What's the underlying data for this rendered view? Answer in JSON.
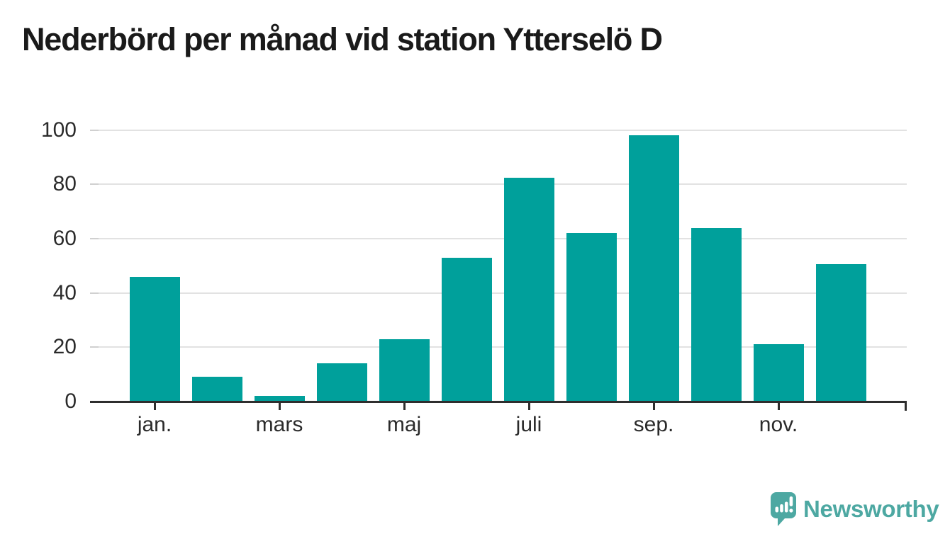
{
  "title": "Nederbörd per månad vid station Ytterselö D",
  "chart_data": {
    "type": "bar",
    "title": "Nederbörd per månad vid station Ytterselö D",
    "values": [
      46,
      9,
      2,
      14,
      23,
      53,
      82.5,
      62,
      98,
      64,
      21,
      50.5
    ],
    "x_tick_labels": [
      "jan.",
      "mars",
      "maj",
      "juli",
      "sep.",
      "nov."
    ],
    "x_tick_bar_indexes": [
      0,
      2,
      4,
      6,
      8,
      10
    ],
    "y_tick_labels": [
      "0",
      "20",
      "40",
      "60",
      "80",
      "100"
    ],
    "y_tick_values": [
      0,
      20,
      40,
      60,
      80,
      100
    ],
    "ylim": [
      0,
      100
    ],
    "xlabel": "",
    "ylabel": "",
    "grid": true,
    "legend_position": "none",
    "bar_color": "#00a09b"
  },
  "branding": {
    "wordmark": "Newsworthy",
    "logo_icon": "speech-bubble-bar-chart-icon",
    "logo_color": "#4da8a2"
  },
  "colors": {
    "bar": "#00a09b",
    "title_text": "#1a1a1a",
    "axis_text": "#2b2b2b",
    "gridline": "#e2e2e2",
    "axis_line": "#2e2e2e",
    "background": "#ffffff"
  }
}
